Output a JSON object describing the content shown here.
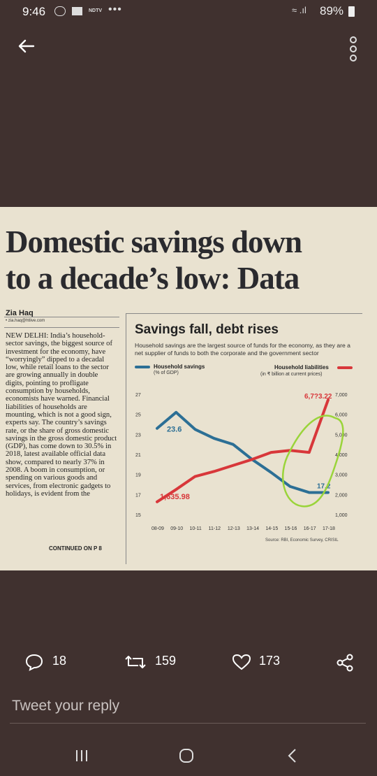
{
  "status_bar": {
    "time": "9:46",
    "ndtv": "NDTV",
    "battery_pct": "89%"
  },
  "article": {
    "headline_line1": "Domestic savings down",
    "headline_line2": "to a decade’s low: Data",
    "author": "Zia Haq",
    "author_email": "• zia.haq@htlive.com",
    "body": "NEW DELHI: India’s household-sector savings, the biggest source of investment for the economy, have “worryingly” dipped to a decadal low, while retail loans to the sector are growing annually in double digits, pointing to profligate consumption by households, economists have warned. Financial liabilities of households are mounting, which is not a good sign, experts say. The country’s savings rate, or the share of gross domestic savings in the gross domestic product (GDP), has come down to 30.5% in 2018, latest available official data show, compared to nearly 37% in 2008. A boom in consumption, or spending on various goods and services, from electronic gadgets to holidays, is evident from the",
    "continued": "CONTINUED ON P 8"
  },
  "chart": {
    "title": "Savings fall, debt rises",
    "subtitle": "Household savings are the largest source of funds for the economy, as they are a net supplier of funds to both the corporate and the government sector",
    "legend_left": "Household savings",
    "legend_left_unit": "(% of GDP)",
    "legend_right": "Household liabilities",
    "legend_right_unit": "(in ₹ billion at current prices)",
    "source": "Source: RBI, Economic Survey, CRISIL",
    "label_savings_start": "23.6",
    "label_savings_end": "17.2",
    "label_liab_start": "1,635.98",
    "label_liab_end": "6,7?3.22"
  },
  "chart_data": {
    "type": "line",
    "categories": [
      "08-09",
      "09-10",
      "10-11",
      "11-12",
      "12-13",
      "13-14",
      "14-15",
      "15-16",
      "16-17",
      "17-18"
    ],
    "series": [
      {
        "name": "Household savings",
        "axis": "left",
        "color": "#2c6f95",
        "values": [
          23.6,
          25.2,
          23.5,
          22.6,
          22.0,
          20.5,
          19.2,
          17.8,
          17.2,
          17.2
        ]
      },
      {
        "name": "Household liabilities",
        "axis": "right",
        "color": "#d8373a",
        "values": [
          1635.98,
          2250,
          2900,
          3150,
          3450,
          3750,
          4100,
          4200,
          4100,
          6723.22
        ]
      }
    ],
    "y_left_ticks": [
      27,
      25,
      23,
      21,
      19,
      17,
      15
    ],
    "y_right_ticks": [
      "7,000",
      "6,000",
      "5,000",
      "4,000",
      "3,000",
      "2,000",
      "1,000"
    ],
    "ylim_left": [
      15,
      27
    ],
    "ylim_right": [
      1000,
      7000
    ],
    "annotation": "green hand-drawn circle around rising liabilities 14-15 to 17-18"
  },
  "tweet_actions": {
    "replies": "18",
    "retweets": "159",
    "likes": "173"
  },
  "reply_placeholder": "Tweet your reply",
  "colors": {
    "background": "#40312f",
    "paper": "#e9e2d0",
    "savings": "#2c6f95",
    "liabilities": "#d8373a",
    "annotation": "#9ad43a"
  }
}
